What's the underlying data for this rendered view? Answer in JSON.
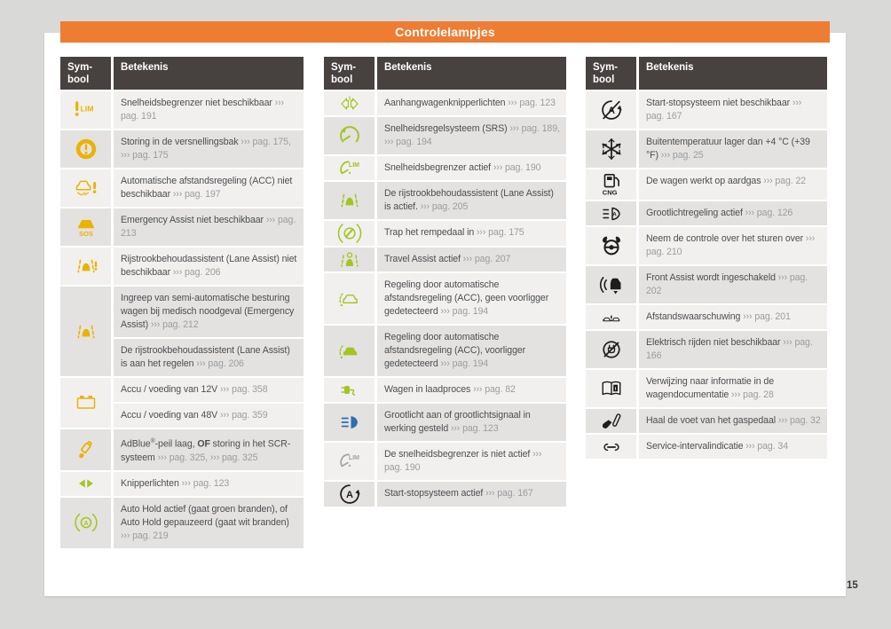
{
  "page": {
    "title": "Controlelampjes",
    "page_number": "15"
  },
  "colors": {
    "orange": "#ee7c33",
    "header": "#474140",
    "row_light": "#f1f0ef",
    "row_dark": "#e3e2e1",
    "text": "#4e4e50",
    "reference": "#9c9c9e",
    "page_bg": "#d9d9d8",
    "yellow": "#ecb200",
    "green": "#a3c520",
    "blue": "#2e6fae",
    "black": "#1d1d1b",
    "gray": "#a2a2a2"
  },
  "column_headers": {
    "symbol": [
      "Sym-",
      "bool"
    ],
    "meaning": "Betekenis"
  },
  "tables": [
    {
      "name": "warning-lights-table-1",
      "rows": [
        {
          "icon": "speed-limiter-warning-icon",
          "color": "yellow",
          "entries": [
            [
              "Snelheidsbegrenzer niet beschikbaar ",
              {
                "ref": "››› pag. 191"
              }
            ]
          ]
        },
        {
          "icon": "gearbox-warning-icon",
          "color": "yellow",
          "entries": [
            [
              "Storing in de versnellingsbak ",
              {
                "ref": "››› pag. 175, ››› pag. 175"
              }
            ]
          ]
        },
        {
          "icon": "acc-warning-icon",
          "color": "yellow",
          "entries": [
            [
              "Automatische afstandsregeling (ACC) niet beschikbaar ",
              {
                "ref": "››› pag. 197"
              }
            ]
          ]
        },
        {
          "icon": "emergency-assist-warning-icon",
          "color": "yellow",
          "entries": [
            [
              "Emergency Assist niet beschikbaar ",
              {
                "ref": "››› pag. 213"
              }
            ]
          ]
        },
        {
          "icon": "lane-assist-warning-icon",
          "color": "yellow",
          "entries": [
            [
              "Rijstrookbehoudassistent (Lane Assist) niet beschikbaar ",
              {
                "ref": "››› pag. 206"
              }
            ]
          ]
        },
        {
          "icon": "lane-assist-icon",
          "color": "yellow",
          "entries": [
            [
              "Ingreep van semi-automatische besturing wagen bij medisch noodgeval (Emergency Assist) ",
              {
                "ref": "››› pag. 212"
              }
            ],
            [
              "De rijstrookbehoudassistent (Lane Assist) is aan het regelen ",
              {
                "ref": "››› pag. 206"
              }
            ]
          ]
        },
        {
          "icon": "battery-icon",
          "color": "yellow",
          "entries": [
            [
              "Accu / voeding van 12V ",
              {
                "ref": "››› pag. 358"
              }
            ],
            [
              "Accu / voeding van 48V ",
              {
                "ref": "››› pag. 359"
              }
            ]
          ]
        },
        {
          "icon": "adblue-icon",
          "color": "yellow",
          "entries": [
            [
              "AdBlue",
              {
                "sup": "®"
              },
              "-peil laag, ",
              {
                "b": "OF"
              },
              " storing in het SCR-systeem ",
              {
                "ref": "››› pag. 325, ››› pag. 325"
              }
            ]
          ]
        },
        {
          "icon": "turn-signals-icon",
          "color": "green",
          "entries": [
            [
              "Knipperlichten ",
              {
                "ref": "››› pag. 123"
              }
            ]
          ]
        },
        {
          "icon": "auto-hold-icon",
          "color": "green",
          "entries": [
            [
              "Auto Hold actief (gaat groen branden), of Auto Hold gepauzeerd (gaat wit branden) ",
              {
                "ref": "››› pag. 219"
              }
            ]
          ]
        }
      ]
    },
    {
      "name": "warning-lights-table-2",
      "rows": [
        {
          "icon": "trailer-turn-signals-icon",
          "color": "green",
          "entries": [
            [
              "Aanhangwagenknipperlichten ",
              {
                "ref": "››› pag. 123"
              }
            ]
          ]
        },
        {
          "icon": "cruise-control-icon",
          "color": "green",
          "entries": [
            [
              "Snelheidsregelsysteem (SRS) ",
              {
                "ref": "››› pag. 189, ››› pag. 194"
              }
            ]
          ]
        },
        {
          "icon": "speed-limiter-icon",
          "color": "green",
          "entries": [
            [
              "Snelheidsbegrenzer actief ",
              {
                "ref": "››› pag. 190"
              }
            ]
          ]
        },
        {
          "icon": "lane-assist-icon",
          "color": "green",
          "entries": [
            [
              "De rijstrookbehoudassistent (Lane Assist) is actief. ",
              {
                "ref": "››› pag. 205"
              }
            ]
          ]
        },
        {
          "icon": "brake-pedal-icon",
          "color": "green",
          "entries": [
            [
              "Trap het rempedaal in ",
              {
                "ref": "››› pag. 175"
              }
            ]
          ]
        },
        {
          "icon": "travel-assist-icon",
          "color": "green",
          "entries": [
            [
              "Travel Assist actief ",
              {
                "ref": "››› pag. 207"
              }
            ]
          ]
        },
        {
          "icon": "acc-no-vehicle-icon",
          "color": "green",
          "entries": [
            [
              "Regeling door automatische afstandsregeling (ACC), geen voorligger gedetecteerd ",
              {
                "ref": "››› pag. 194"
              }
            ]
          ]
        },
        {
          "icon": "acc-vehicle-icon",
          "color": "green",
          "entries": [
            [
              "Regeling door automatische afstandsregeling (ACC), voorligger gedetecteerd ",
              {
                "ref": "››› pag. 194"
              }
            ]
          ]
        },
        {
          "icon": "charging-icon",
          "color": "green",
          "entries": [
            [
              "Wagen in laadproces ",
              {
                "ref": "››› pag. 82"
              }
            ]
          ]
        },
        {
          "icon": "high-beam-icon",
          "color": "blue",
          "entries": [
            [
              "Grootlicht aan of grootlichtsignaal in werking gesteld ",
              {
                "ref": "››› pag. 123"
              }
            ]
          ]
        },
        {
          "icon": "speed-limiter-icon",
          "color": "gray",
          "entries": [
            [
              "De snelheidsbegrenzer is niet actief ",
              {
                "ref": "››› pag. 190"
              }
            ]
          ]
        },
        {
          "icon": "start-stop-icon",
          "color": "black",
          "entries": [
            [
              "Start-stopsysteem actief ",
              {
                "ref": "››› pag. 167"
              }
            ]
          ]
        }
      ]
    },
    {
      "name": "warning-lights-table-3",
      "rows": [
        {
          "icon": "start-stop-off-icon",
          "color": "black",
          "entries": [
            [
              "Start-stopsysteem niet beschikbaar ",
              {
                "ref": "››› pag. 167"
              }
            ]
          ]
        },
        {
          "icon": "snowflake-icon",
          "color": "black",
          "entries": [
            [
              "Buitentemperatuur lager dan +4 °C (+39 °F) ",
              {
                "ref": "››› pag. 25"
              }
            ]
          ]
        },
        {
          "icon": "cng-icon",
          "color": "black",
          "entries": [
            [
              "De wagen werkt op aardgas ",
              {
                "ref": "››› pag. 22"
              }
            ]
          ]
        },
        {
          "icon": "auto-high-beam-icon",
          "color": "black",
          "entries": [
            [
              "Grootlichtregeling actief ",
              {
                "ref": "››› pag. 126"
              }
            ]
          ]
        },
        {
          "icon": "steering-takeover-icon",
          "color": "black",
          "entries": [
            [
              "Neem de controle over het sturen over ",
              {
                "ref": "››› pag. 210"
              }
            ]
          ]
        },
        {
          "icon": "front-assist-icon",
          "color": "black",
          "entries": [
            [
              "Front Assist wordt ingeschakeld ",
              {
                "ref": "››› pag. 202"
              }
            ]
          ]
        },
        {
          "icon": "distance-warning-icon",
          "color": "black",
          "entries": [
            [
              "Afstandswaarschuwing ",
              {
                "ref": "››› pag. 201"
              }
            ]
          ]
        },
        {
          "icon": "e-mode-off-icon",
          "color": "black",
          "entries": [
            [
              "Elektrisch rijden niet beschikbaar ",
              {
                "ref": "››› pag. 166"
              }
            ]
          ]
        },
        {
          "icon": "manual-book-icon",
          "color": "black",
          "entries": [
            [
              "Verwijzing naar informatie in de wagendocumentatie ",
              {
                "ref": "››› pag. 28"
              }
            ]
          ]
        },
        {
          "icon": "lift-foot-icon",
          "color": "black",
          "entries": [
            [
              "Haal de voet van het gaspedaal ",
              {
                "ref": "››› pag. 32"
              }
            ]
          ]
        },
        {
          "icon": "service-wrench-icon",
          "color": "black",
          "entries": [
            [
              "Service-intervalindicatie ",
              {
                "ref": "››› pag. 34"
              }
            ]
          ]
        }
      ]
    }
  ]
}
